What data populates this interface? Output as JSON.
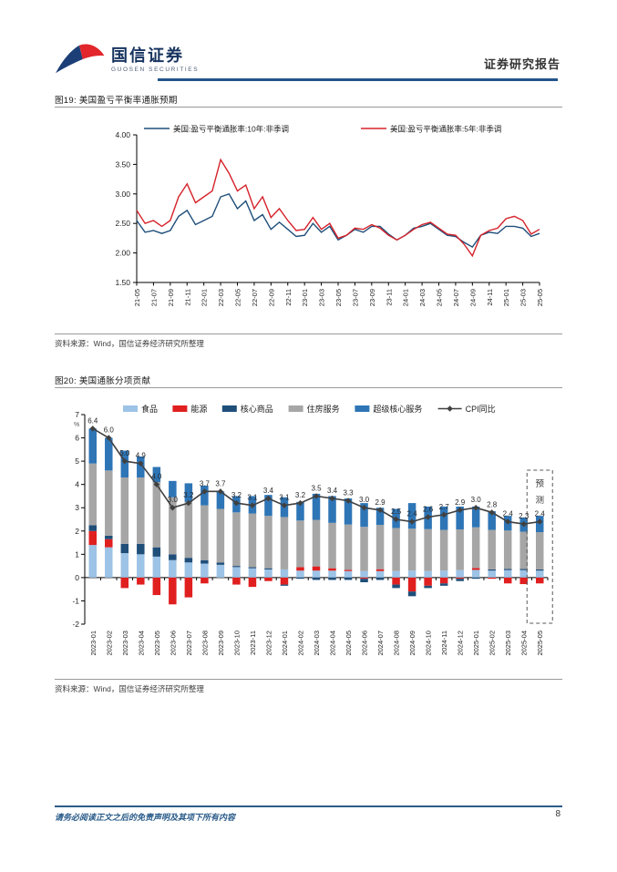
{
  "header": {
    "brand_cn": "国信证券",
    "brand_en": "GUOSEN SECURITIES",
    "report_type": "证券研究报告",
    "brand_blue": "#17335f",
    "brand_red": "#e2262b"
  },
  "figure19": {
    "title": "图19: 美国盈亏平衡率通胀预期",
    "source": "资料来源：Wind，国信证券经济研究所整理"
  },
  "figure20": {
    "title": "图20: 美国通胀分项贡献",
    "source": "资料来源：Wind，国信证券经济研究所整理"
  },
  "footer": {
    "disclaimer": "请务必阅读正文之后的免责声明及其项下所有内容",
    "page_number": "8"
  },
  "chart_data": [
    {
      "type": "line",
      "title": "美国盈亏平衡率通胀预期",
      "ylim": [
        1.5,
        4.0
      ],
      "ytick_step": 0.5,
      "grid": false,
      "legend_position": "top",
      "x_count": 49,
      "x_tick_labels": [
        "21-05",
        "21-07",
        "21-09",
        "21-11",
        "22-01",
        "22-03",
        "22-05",
        "22-07",
        "22-09",
        "22-11",
        "23-01",
        "23-03",
        "23-05",
        "23-07",
        "23-09",
        "23-11",
        "24-01",
        "24-03",
        "24-05",
        "24-07",
        "24-09",
        "24-11",
        "25-01",
        "25-03",
        "25-05"
      ],
      "x_tick_every_n_points": 2,
      "series": [
        {
          "name": "美国:盈亏平衡通胀率:10年:非季调",
          "color": "#1f4e79",
          "values": [
            2.55,
            2.35,
            2.38,
            2.33,
            2.38,
            2.62,
            2.72,
            2.48,
            2.55,
            2.62,
            2.95,
            3.0,
            2.75,
            2.88,
            2.55,
            2.65,
            2.4,
            2.52,
            2.4,
            2.28,
            2.3,
            2.5,
            2.35,
            2.45,
            2.22,
            2.3,
            2.4,
            2.35,
            2.45,
            2.45,
            2.32,
            2.22,
            2.3,
            2.42,
            2.45,
            2.5,
            2.4,
            2.3,
            2.28,
            2.18,
            2.1,
            2.3,
            2.35,
            2.33,
            2.45,
            2.45,
            2.42,
            2.28,
            2.33
          ]
        },
        {
          "name": "美国:盈亏平衡通胀率:5年:非季调",
          "color": "#d5222a",
          "values": [
            2.72,
            2.5,
            2.55,
            2.45,
            2.55,
            2.95,
            3.17,
            2.85,
            2.95,
            3.05,
            3.58,
            3.35,
            3.05,
            3.15,
            2.75,
            2.95,
            2.6,
            2.75,
            2.55,
            2.38,
            2.4,
            2.6,
            2.4,
            2.5,
            2.25,
            2.3,
            2.42,
            2.4,
            2.48,
            2.42,
            2.3,
            2.22,
            2.3,
            2.4,
            2.48,
            2.52,
            2.42,
            2.32,
            2.3,
            2.15,
            1.95,
            2.3,
            2.38,
            2.42,
            2.58,
            2.62,
            2.55,
            2.32,
            2.4
          ]
        }
      ]
    },
    {
      "type": "bar",
      "subtype": "stacked-bar-with-line",
      "title": "美国通胀分项贡献",
      "unit": "%",
      "ylim": [
        -2,
        7
      ],
      "ytick_step": 1,
      "grid": false,
      "legend_position": "top",
      "categories": [
        "2023-01",
        "2023-02",
        "2023-03",
        "2023-04",
        "2023-05",
        "2023-06",
        "2023-07",
        "2023-08",
        "2023-09",
        "2023-10",
        "2023-11",
        "2023-12",
        "2024-01",
        "2024-02",
        "2024-03",
        "2024-04",
        "2024-05",
        "2024-06",
        "2024-07",
        "2024-08",
        "2024-09",
        "2024-10",
        "2024-11",
        "2024-12",
        "2025-01",
        "2025-02",
        "2025-03",
        "2025-04",
        "2025-05"
      ],
      "series": [
        {
          "name": "食品",
          "color": "#9dc3e6",
          "values": [
            1.4,
            1.3,
            1.05,
            1.0,
            0.9,
            0.75,
            0.65,
            0.6,
            0.55,
            0.45,
            0.4,
            0.35,
            0.35,
            0.3,
            0.3,
            0.3,
            0.28,
            0.28,
            0.28,
            0.28,
            0.3,
            0.28,
            0.3,
            0.32,
            0.33,
            0.3,
            0.32,
            0.32,
            0.3
          ]
        },
        {
          "name": "能源",
          "color": "#e01f1f",
          "values": [
            0.6,
            0.35,
            -0.45,
            -0.3,
            -0.75,
            -1.15,
            -0.85,
            -0.25,
            0.0,
            -0.3,
            -0.4,
            -0.15,
            -0.3,
            0.15,
            0.18,
            0.1,
            0.05,
            -0.05,
            0.08,
            -0.3,
            -0.6,
            -0.35,
            -0.25,
            -0.05,
            0.08,
            -0.05,
            -0.25,
            -0.28,
            -0.25
          ]
        },
        {
          "name": "核心商品",
          "color": "#1f4e79",
          "values": [
            0.25,
            0.15,
            0.4,
            0.45,
            0.4,
            0.25,
            0.2,
            0.15,
            0.1,
            0.05,
            0.05,
            0.05,
            -0.05,
            -0.05,
            -0.1,
            -0.1,
            -0.1,
            -0.15,
            -0.1,
            -0.15,
            -0.2,
            -0.1,
            -0.1,
            -0.1,
            -0.05,
            0.05,
            0.05,
            0.05,
            0.05
          ]
        },
        {
          "name": "住房服务",
          "color": "#a6a6a6",
          "values": [
            2.65,
            2.8,
            2.85,
            2.85,
            2.8,
            2.45,
            2.4,
            2.35,
            2.3,
            2.3,
            2.3,
            2.25,
            2.25,
            2.0,
            2.0,
            1.95,
            1.95,
            1.9,
            1.9,
            1.85,
            1.8,
            1.8,
            1.75,
            1.75,
            1.75,
            1.7,
            1.65,
            1.6,
            1.6
          ]
        },
        {
          "name": "超级核心服务",
          "color": "#2e75b6",
          "values": [
            1.5,
            1.4,
            1.15,
            0.9,
            0.65,
            0.7,
            0.8,
            0.85,
            0.75,
            0.7,
            0.75,
            0.9,
            0.85,
            0.8,
            1.12,
            1.15,
            1.12,
            1.02,
            0.74,
            0.82,
            1.1,
            0.97,
            1.0,
            0.98,
            0.89,
            0.8,
            0.63,
            0.61,
            0.7
          ]
        }
      ],
      "line": {
        "name": "CPI同比",
        "color": "#404040",
        "values": [
          6.4,
          6.0,
          5.0,
          4.9,
          4.0,
          3.0,
          3.2,
          3.7,
          3.7,
          3.2,
          3.1,
          3.4,
          3.1,
          3.2,
          3.5,
          3.4,
          3.3,
          3.0,
          2.9,
          2.5,
          2.4,
          2.6,
          2.7,
          2.9,
          3.0,
          2.8,
          2.4,
          2.3,
          2.4
        ]
      },
      "forecast": {
        "label": "预测",
        "index": 28
      }
    }
  ]
}
